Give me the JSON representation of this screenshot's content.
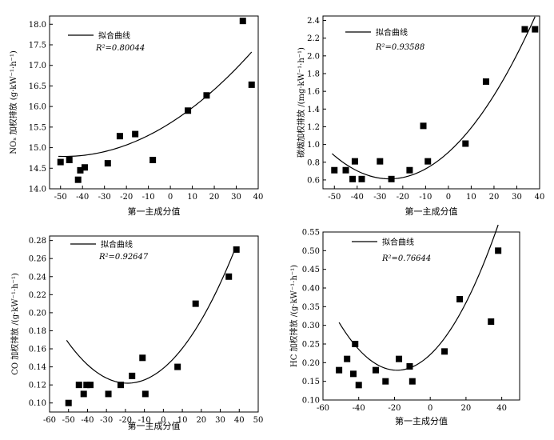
{
  "chart_data": [
    {
      "id": "nox",
      "type": "scatter",
      "ylabel": "NOₓ 加权排放 (g·kW⁻¹·h⁻¹)",
      "xlabel": "第一主成分值",
      "legend_label": "拟合曲线",
      "r2_label": "R²=0.80044",
      "legend_position": "top-left",
      "xlim": [
        -55,
        40
      ],
      "ylim": [
        14.0,
        18.2
      ],
      "xticks": [
        -50,
        -40,
        -30,
        -20,
        -10,
        0,
        10,
        20,
        30,
        40
      ],
      "yticks": [
        14.0,
        14.5,
        15.0,
        15.5,
        16.0,
        16.5,
        17.0,
        17.5,
        18.0
      ],
      "ytick_labels": [
        "14.0",
        "14.5",
        "15.0",
        "15.5",
        "16.0",
        "16.5",
        "17.0",
        "17.5",
        "18.0"
      ],
      "points": [
        [
          -50,
          14.65
        ],
        [
          -46,
          14.7
        ],
        [
          -42,
          14.22
        ],
        [
          -41,
          14.45
        ],
        [
          -39,
          14.52
        ],
        [
          -28.5,
          14.62
        ],
        [
          -23,
          15.28
        ],
        [
          -16,
          15.33
        ],
        [
          -8,
          14.7
        ],
        [
          8,
          15.9
        ],
        [
          16.5,
          16.27
        ],
        [
          33,
          18.08
        ],
        [
          37,
          16.53
        ]
      ],
      "fit_x_range": [
        -51,
        37
      ],
      "fit_coefficients": [
        15.6,
        0.0337,
        0.000349
      ]
    },
    {
      "id": "soot",
      "type": "scatter",
      "ylabel": "碳烟加权排放 /(mg·kW⁻¹·h⁻¹)",
      "xlabel": "第一主成分值",
      "legend_label": "拟合曲线",
      "r2_label": "R²=0.93588",
      "legend_position": "top-left",
      "xlim": [
        -55,
        40
      ],
      "ylim": [
        0.5,
        2.45
      ],
      "xticks": [
        -50,
        -40,
        -30,
        -20,
        -10,
        0,
        10,
        20,
        30,
        40
      ],
      "yticks": [
        0.6,
        0.8,
        1.0,
        1.2,
        1.4,
        1.6,
        1.8,
        2.0,
        2.2,
        2.4
      ],
      "ytick_labels": [
        "0.6",
        "0.8",
        "1.0",
        "1.2",
        "1.4",
        "1.6",
        "1.8",
        "2.0",
        "2.2",
        "2.4"
      ],
      "points": [
        [
          -50,
          0.71
        ],
        [
          -45,
          0.71
        ],
        [
          -42,
          0.61
        ],
        [
          -41,
          0.81
        ],
        [
          -38,
          0.61
        ],
        [
          -30,
          0.81
        ],
        [
          -25,
          0.61
        ],
        [
          -17,
          0.71
        ],
        [
          -11,
          1.21
        ],
        [
          -9,
          0.81
        ],
        [
          7.5,
          1.01
        ],
        [
          16.5,
          1.71
        ],
        [
          33.5,
          2.3
        ],
        [
          38,
          2.3
        ]
      ],
      "fit_x_range": [
        -51,
        38
      ],
      "fit_coefficients": [
        0.912,
        0.0232,
        0.000449
      ]
    },
    {
      "id": "co",
      "type": "scatter",
      "ylabel": "CO 加权排放 /(g·kW⁻¹·h⁻¹)",
      "xlabel": "第一主成分值",
      "legend_label": "拟合曲线",
      "r2_label": "R²=0.92647",
      "legend_position": "top-left",
      "xlim": [
        -60,
        50
      ],
      "ylim": [
        0.09,
        0.285
      ],
      "xticks": [
        -60,
        -50,
        -40,
        -30,
        -20,
        -10,
        0,
        10,
        20,
        30,
        40,
        50
      ],
      "yticks": [
        0.1,
        0.12,
        0.14,
        0.16,
        0.18,
        0.2,
        0.22,
        0.24,
        0.26,
        0.28
      ],
      "ytick_labels": [
        "0.10",
        "0.12",
        "0.14",
        "0.16",
        "0.18",
        "0.20",
        "0.22",
        "0.24",
        "0.26",
        "0.28"
      ],
      "points": [
        [
          -50,
          0.1
        ],
        [
          -44.5,
          0.12
        ],
        [
          -42,
          0.11
        ],
        [
          -40.5,
          0.12
        ],
        [
          -38.5,
          0.12
        ],
        [
          -29,
          0.11
        ],
        [
          -22.5,
          0.12
        ],
        [
          -16.5,
          0.13
        ],
        [
          -11,
          0.15
        ],
        [
          -9.5,
          0.11
        ],
        [
          7.5,
          0.14
        ],
        [
          17,
          0.21
        ],
        [
          34.5,
          0.24
        ],
        [
          38.5,
          0.27
        ]
      ],
      "fit_x_range": [
        -51,
        38
      ],
      "fit_coefficients": [
        0.1385,
        0.00175,
        4.62e-05
      ]
    },
    {
      "id": "hc",
      "type": "scatter",
      "ylabel": "HC 加权排放 /(g·kW⁻¹·h⁻¹)",
      "xlabel": "第一主成分值",
      "legend_label": "拟合曲线",
      "r2_label": "R²=0.76644",
      "legend_position": "top-left",
      "xlim": [
        -60,
        50
      ],
      "ylim": [
        0.1,
        0.55
      ],
      "xticks": [
        -60,
        -40,
        -20,
        0,
        20,
        40
      ],
      "yticks": [
        0.1,
        0.15,
        0.2,
        0.25,
        0.3,
        0.35,
        0.4,
        0.45,
        0.5,
        0.55
      ],
      "ytick_labels": [
        "0.10",
        "0.15",
        "0.20",
        "0.25",
        "0.30",
        "0.35",
        "0.40",
        "0.45",
        "0.50",
        "0.55"
      ],
      "points": [
        [
          -51,
          0.18
        ],
        [
          -46.5,
          0.21
        ],
        [
          -43,
          0.17
        ],
        [
          -42,
          0.25
        ],
        [
          -40,
          0.14
        ],
        [
          -30.5,
          0.18
        ],
        [
          -25,
          0.15
        ],
        [
          -17.5,
          0.21
        ],
        [
          -11.5,
          0.19
        ],
        [
          -10,
          0.15
        ],
        [
          8,
          0.23
        ],
        [
          16.5,
          0.37
        ],
        [
          34,
          0.31
        ],
        [
          38,
          0.5
        ]
      ],
      "fit_x_range": [
        -51,
        38
      ],
      "fit_coefficients": [
        0.2217,
        0.00452,
        0.0001217
      ]
    }
  ]
}
